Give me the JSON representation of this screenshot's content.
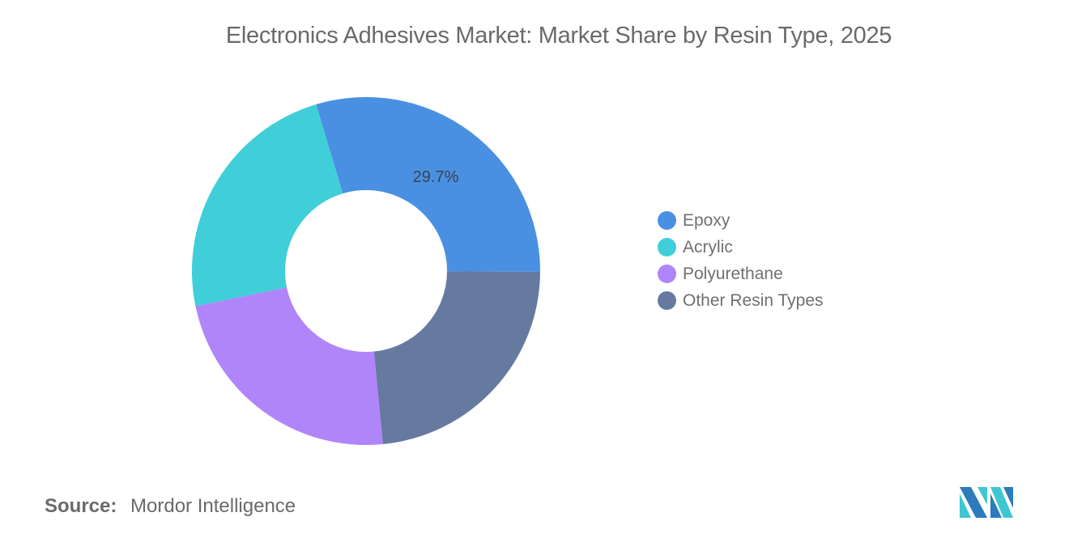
{
  "title": "Electronics Adhesives Market: Market Share by Resin Type, 2025",
  "chart_data": {
    "type": "pie",
    "subtype": "donut",
    "title": "Electronics Adhesives Market: Market Share by Resin Type, 2025",
    "categories": [
      "Epoxy",
      "Acrylic",
      "Polyurethane",
      "Other Resin Types"
    ],
    "values": [
      29.7,
      23.6,
      23.3,
      23.4
    ],
    "unit": "%",
    "colors": [
      "#4a90e2",
      "#40ced9",
      "#b085fa",
      "#667aa0"
    ],
    "data_labels": [
      {
        "category": "Epoxy",
        "text": "29.7%"
      }
    ],
    "legend_position": "right",
    "start_angle_deg": -16.7
  },
  "legend": {
    "items": [
      {
        "label": "Epoxy",
        "color": "#4a90e2"
      },
      {
        "label": "Acrylic",
        "color": "#40ced9"
      },
      {
        "label": "Polyurethane",
        "color": "#b085fa"
      },
      {
        "label": "Other Resin Types",
        "color": "#667aa0"
      }
    ]
  },
  "source": {
    "label": "Source:",
    "value": "Mordor Intelligence"
  },
  "logo": {
    "name": "mordor-intelligence-logo",
    "colors": [
      "#2b7bbd",
      "#3fc6d3"
    ]
  }
}
